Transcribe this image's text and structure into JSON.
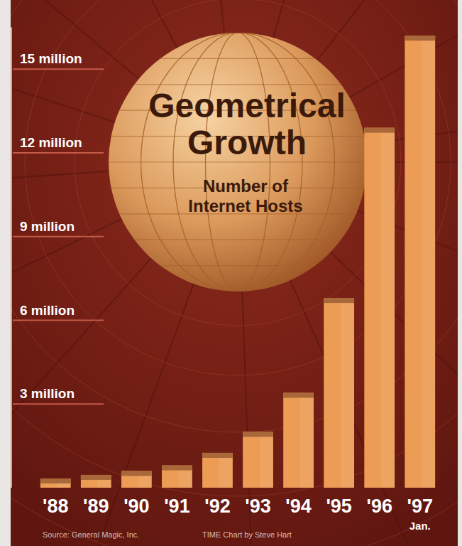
{
  "chart_data": {
    "type": "bar",
    "title": "Geometrical Growth",
    "subtitle": "Number of Internet Hosts",
    "categories": [
      "'88",
      "'89",
      "'90",
      "'91",
      "'92",
      "'93",
      "'94",
      "'95",
      "'96",
      "'97"
    ],
    "values": [
      0.33,
      0.46,
      0.6,
      0.8,
      1.25,
      2.0,
      3.4,
      6.8,
      12.9,
      16.2
    ],
    "color": "#ec9c55",
    "ylim": [
      0,
      16.5
    ],
    "yticks": [
      {
        "value": 3,
        "label": "3 million"
      },
      {
        "value": 6,
        "label": "6 million"
      },
      {
        "value": 9,
        "label": "9 million"
      },
      {
        "value": 12,
        "label": "12 million"
      },
      {
        "value": 15,
        "label": "15 million"
      }
    ],
    "grid": false,
    "annotation": "Jan.",
    "source": "Source: General Magic, Inc.",
    "credit": "TIME Chart by Steve Hart"
  }
}
